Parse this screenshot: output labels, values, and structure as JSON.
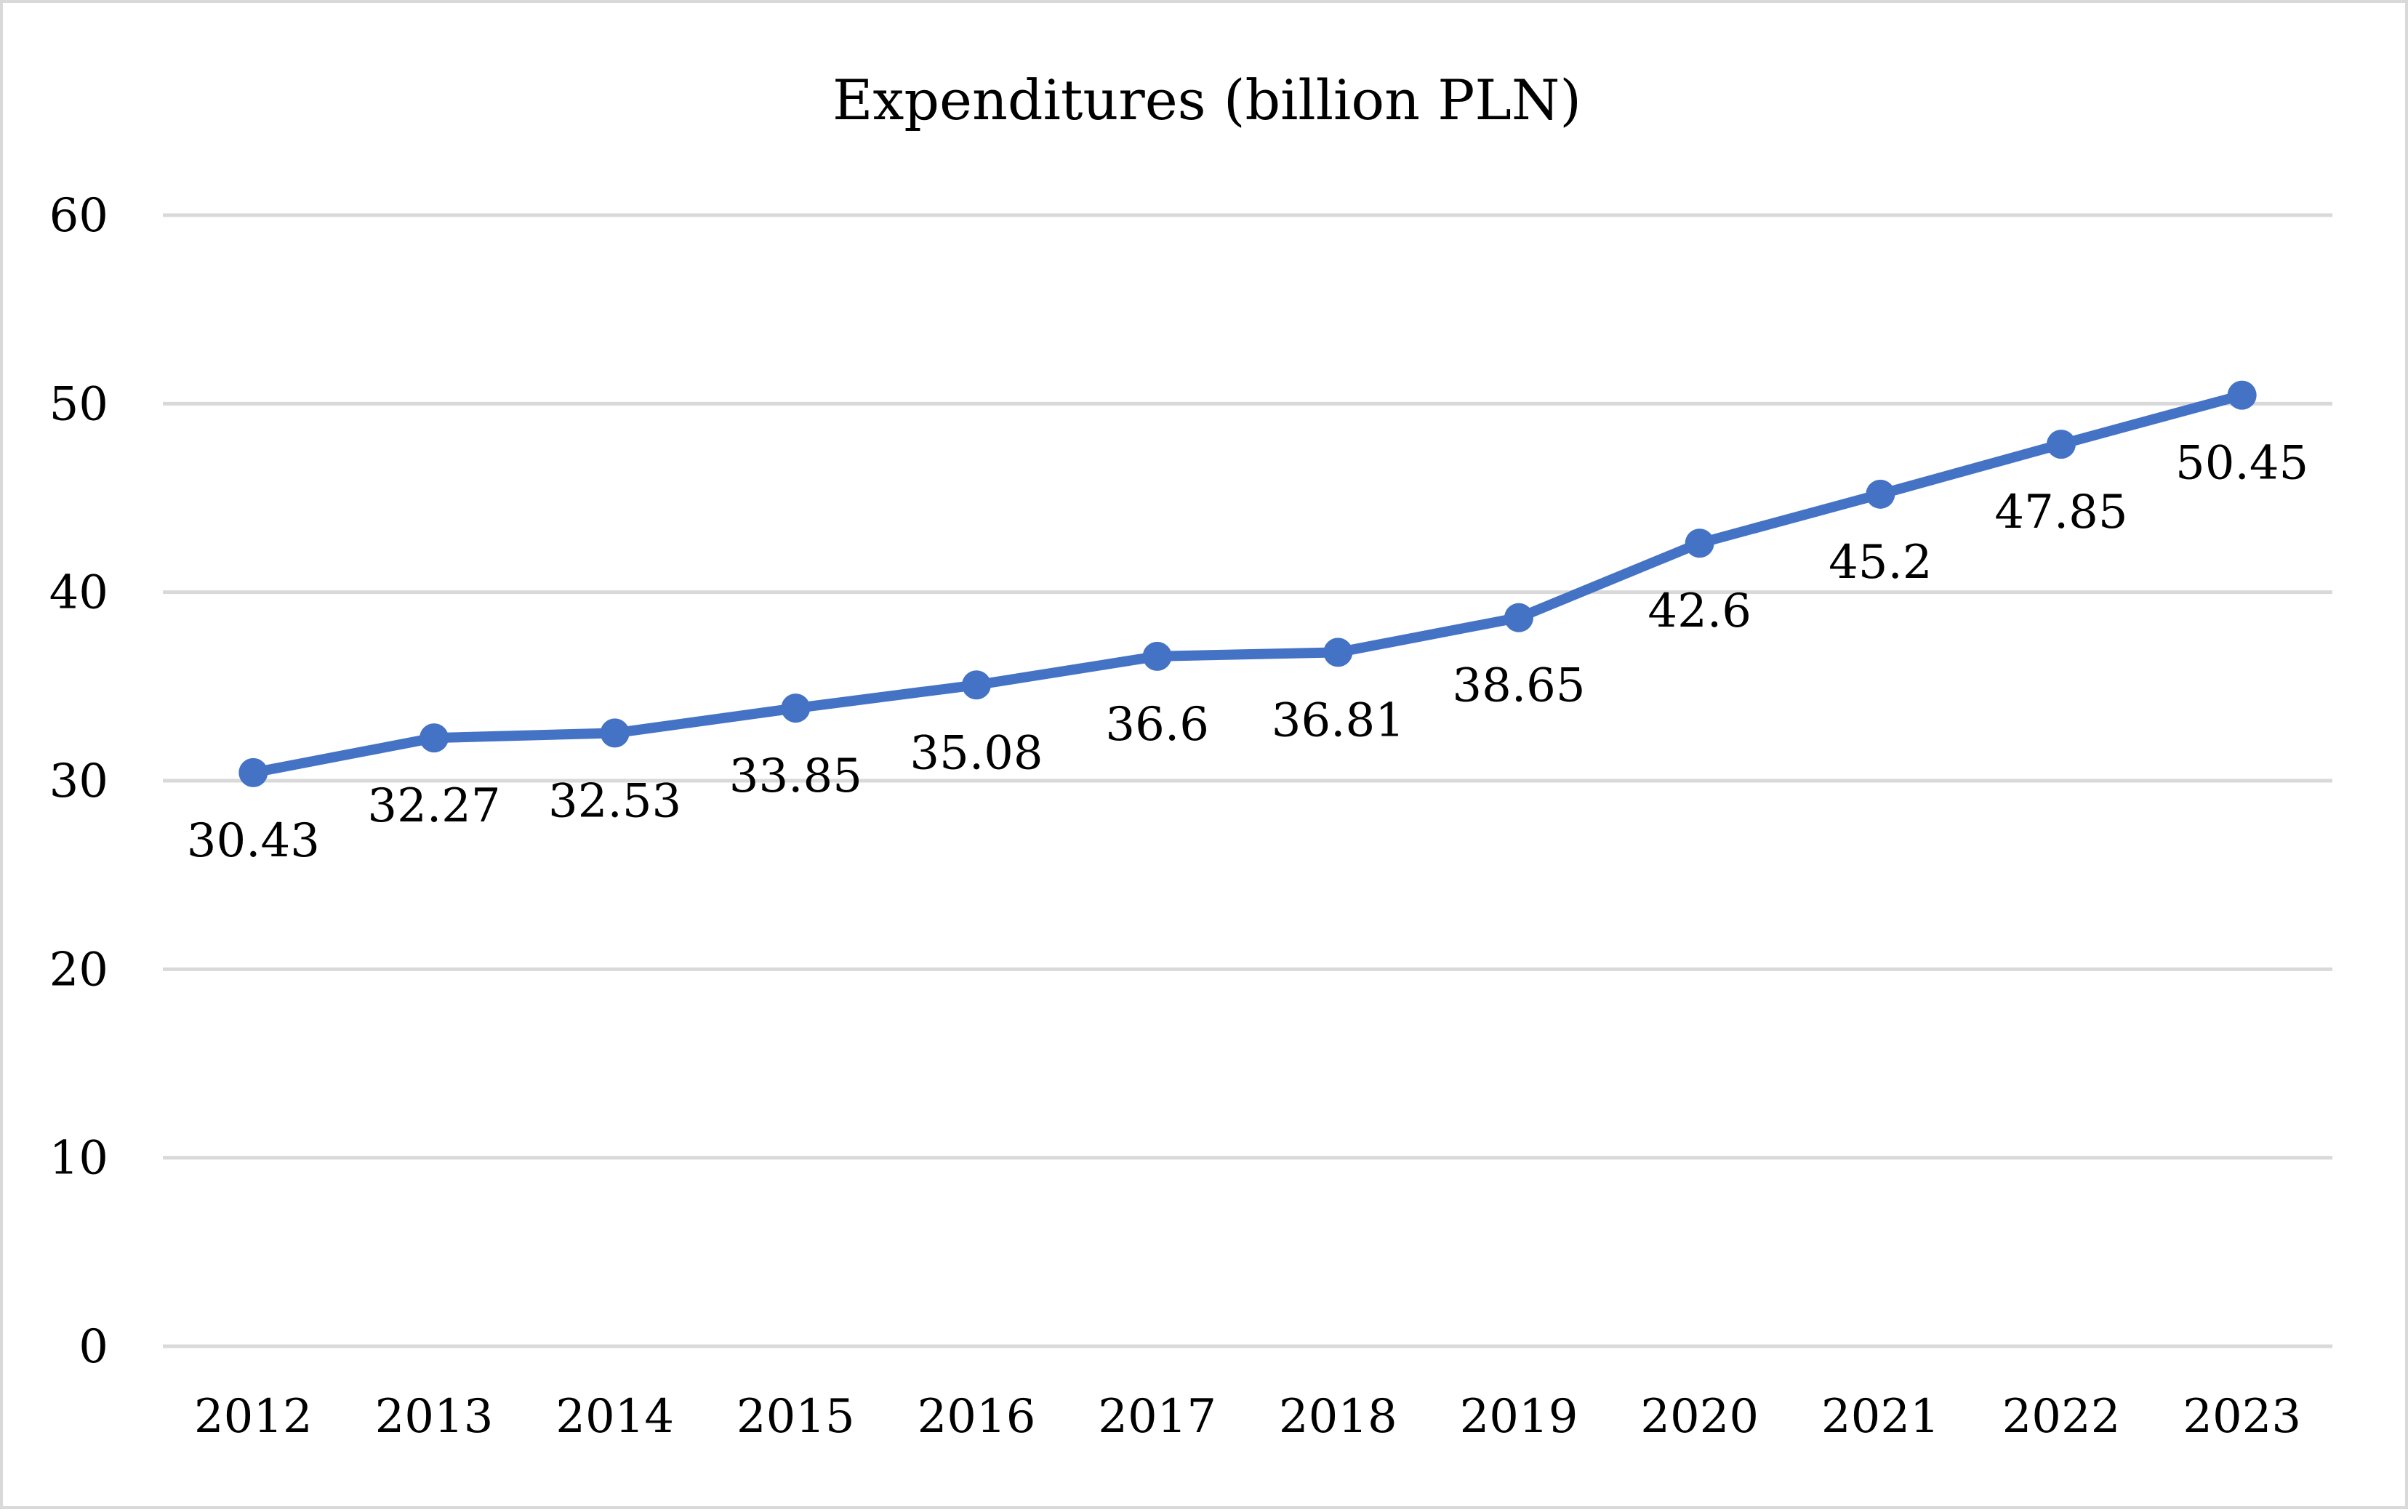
{
  "chart_data": {
    "type": "line",
    "title": "Expenditures (billion PLN)",
    "xlabel": "",
    "ylabel": "",
    "ylim": [
      0,
      60
    ],
    "yticks": [
      0,
      10,
      20,
      30,
      40,
      50,
      60
    ],
    "grid": true,
    "legend": "none",
    "categories": [
      "2012",
      "2013",
      "2014",
      "2015",
      "2016",
      "2017",
      "2018",
      "2019",
      "2020",
      "2021",
      "2022",
      "2023"
    ],
    "series": [
      {
        "name": "Expenditures",
        "color": "#4472c4",
        "values": [
          30.43,
          32.27,
          32.53,
          33.85,
          35.08,
          36.6,
          36.81,
          38.65,
          42.6,
          45.2,
          47.85,
          50.45
        ],
        "labels": [
          "30.43",
          "32.27",
          "32.53",
          "33.85",
          "35.08",
          "36.6",
          "36.81",
          "38.65",
          "42.6",
          "45.2",
          "47.85",
          "50.45"
        ]
      }
    ]
  }
}
